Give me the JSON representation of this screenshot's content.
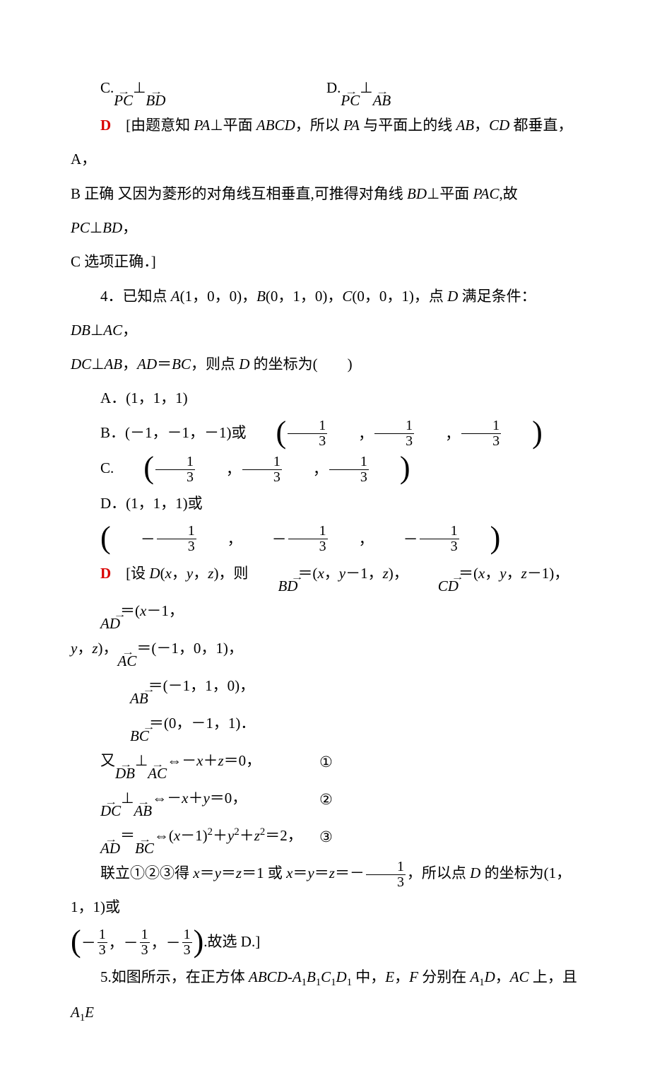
{
  "opt_c": "C.",
  "opt_c_vec1": "PC",
  "opt_c_perp": "⊥",
  "opt_c_vec2": "BD",
  "opt_d": "D.",
  "opt_d_vec1": "PC",
  "opt_d_perp": "⊥",
  "opt_d_vec2": "AB",
  "ans3_label": "D",
  "ans3_body_l1_a": "　[由题意知 ",
  "ans3_body_l1_b": "PA",
  "ans3_body_l1_c": "⊥平面 ",
  "ans3_body_l1_d": "ABCD",
  "ans3_body_l1_e": "，所以 ",
  "ans3_body_l1_f": "PA",
  "ans3_body_l1_g": " 与平面上的线 ",
  "ans3_body_l1_h": "AB",
  "ans3_body_l1_i": "，",
  "ans3_body_l1_j": "CD",
  "ans3_body_l1_k": " 都垂直，A，",
  "ans3_body_l2_a": "B 正确 又因为菱形的对角线互相垂直,可推得对角线 ",
  "ans3_body_l2_b": "BD",
  "ans3_body_l2_c": "⊥平面 ",
  "ans3_body_l2_d": "PAC",
  "ans3_body_l2_e": ",故 ",
  "ans3_body_l2_f": "PC",
  "ans3_body_l2_g": "⊥",
  "ans3_body_l2_h": "BD",
  "ans3_body_l2_i": "，",
  "ans3_body_l3": "C 选项正确．]",
  "q4_a": "4．已知点 ",
  "q4_b": "A",
  "q4_c": "(1，0，0)，",
  "q4_d": "B",
  "q4_e": "(0，1，0)，",
  "q4_f": "C",
  "q4_g": "(0，0，1)，点 ",
  "q4_h": "D",
  "q4_i": " 满足条件：",
  "q4_j": "DB",
  "q4_k": "⊥",
  "q4_l": "AC",
  "q4_m": "，",
  "q4_n": "DC",
  "q4_o": "⊥",
  "q4_p": "AB",
  "q4_q": "，",
  "q4_r": "AD",
  "q4_s": "＝",
  "q4_t": "BC",
  "q4_u": "，则点 ",
  "q4_v": "D",
  "q4_w": " 的坐标为(　　)",
  "q4A": "A．(1，1，1)",
  "q4B_pre": "B．(－1，－1，－1)或",
  "q4C_pre": "C.",
  "q4D_pre": "D．(1，1，1)或",
  "frac13_num": "1",
  "frac13_den": "3",
  "comma": "，",
  "neg": "－",
  "ans4_label": "D",
  "a4_l1_a": "　[设 ",
  "a4_l1_b": "D",
  "a4_l1_c": "(",
  "a4_l1_d": "x",
  "a4_l1_e": "，",
  "a4_l1_f": "y",
  "a4_l1_g": "，",
  "a4_l1_h": "z",
  "a4_l1_i": ")，则",
  "a4_l1_vBD": "BD",
  "a4_l1_eq": "＝(",
  "a4_l1_j": "x",
  "a4_l1_k": "，",
  "a4_l1_l": "y",
  "a4_l1_m": "－1，",
  "a4_l1_n": "z",
  "a4_l1_o": ")，",
  "a4_l1_vCD": "CD",
  "a4_l1_p": "＝(",
  "a4_l1_q": "x",
  "a4_l1_r": "，",
  "a4_l1_s": "y",
  "a4_l1_t": "，",
  "a4_l1_u": "z",
  "a4_l1_v": "－1)，",
  "a4_l1_vAD": "AD",
  "a4_l1_w": "＝(",
  "a4_l1_x": "x",
  "a4_l1_y": "－1，",
  "a4_l2_a": "y",
  "a4_l2_b": "，",
  "a4_l2_c": "z",
  "a4_l2_d": ")，",
  "a4_l2_vAC": "AC",
  "a4_l2_e": "＝(－1，0，1)，",
  "a4_vAB": "AB",
  "a4_ab_val": "＝(－1，1，0)，",
  "a4_vBC": "BC",
  "a4_bc_val": "＝(0，－1，1)．",
  "eq1_pre": "又",
  "eq1_vDB": "DB",
  "eq1_perp": "⊥",
  "eq1_vAC": "AC",
  "eq1_iff": "⇔－",
  "eq1_x": "x",
  "eq1_plus": "＋",
  "eq1_z": "z",
  "eq1_eq0": "＝0，",
  "eq1_num": "①",
  "eq2_vDC": "DC",
  "eq2_perp": "⊥",
  "eq2_vAB": "AB",
  "eq2_iff": "⇔－",
  "eq2_x": "x",
  "eq2_plus": "＋",
  "eq2_y": "y",
  "eq2_eq0": "＝0，",
  "eq2_num": "②",
  "eq3_vAD": "AD",
  "eq3_eq": "＝",
  "eq3_vBC": "BC",
  "eq3_iff": "⇔(",
  "eq3_x": "x",
  "eq3_m1": "－1)",
  "eq3_sq1": "2",
  "eq3_p1": "＋",
  "eq3_y": "y",
  "eq3_sq2": "2",
  "eq3_p2": "＋",
  "eq3_z": "z",
  "eq3_sq3": "2",
  "eq3_eq2": "＝2，",
  "eq3_num": "③",
  "concl_a": "联立①②③得 ",
  "concl_b": "x",
  "concl_c": "＝",
  "concl_d": "y",
  "concl_e": "＝",
  "concl_f": "z",
  "concl_g": "＝1 或 ",
  "concl_h": "x",
  "concl_i": "＝",
  "concl_j": "y",
  "concl_k": "＝",
  "concl_l": "z",
  "concl_m": "＝－",
  "concl_n": "，所以点 ",
  "concl_o": "D",
  "concl_p": " 的坐标为(1，1，1)或",
  "concl_tail": ".故选 D.]",
  "q5": "5.如图所示，在正方体 ",
  "q5_abcd": "ABCD-A",
  "q5_s1": "1",
  "q5_b": "B",
  "q5_s2": "1",
  "q5_c": "C",
  "q5_s3": "1",
  "q5_d": "D",
  "q5_s4": "1",
  "q5_mid": " 中，",
  "q5_e": "E",
  "q5_comma": "，",
  "q5_f": "F",
  "q5_on": " 分别在 ",
  "q5_a1": "A",
  "q5_s5": "1",
  "q5_d2": "D",
  "q5_c2": "，",
  "q5_ac": "AC",
  "q5_up": " 上，且 ",
  "q5_a2": "A",
  "q5_s6": "1",
  "q5_e2": "E"
}
